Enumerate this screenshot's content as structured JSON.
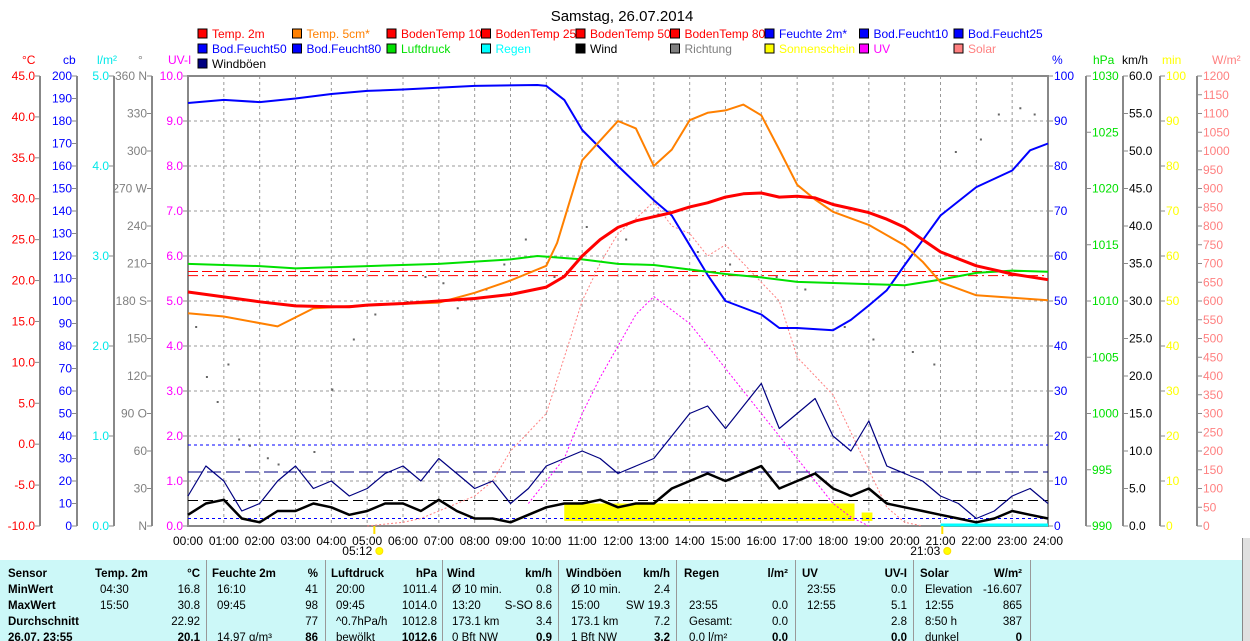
{
  "chart_data": {
    "type": "line",
    "title": "Samstag, 26.07.2014",
    "x_ticks": [
      "00:00",
      "01:00",
      "02:00",
      "03:00",
      "04:00",
      "05:00",
      "06:00",
      "07:00",
      "08:00",
      "09:00",
      "10:00",
      "11:00",
      "12:00",
      "13:00",
      "14:00",
      "15:00",
      "16:00",
      "17:00",
      "18:00",
      "19:00",
      "20:00",
      "21:00",
      "22:00",
      "23:00",
      "24:00"
    ],
    "sunrise": {
      "label": "05:12",
      "hour": 5.2
    },
    "sunset": {
      "label": "21:03",
      "hour": 21.05
    },
    "legend": [
      {
        "label": "Temp. 2m",
        "color": "#ff0000"
      },
      {
        "label": "Temp. 5cm*",
        "color": "#ff8000"
      },
      {
        "label": "BodenTemp 10",
        "color": "#ff0000"
      },
      {
        "label": "BodenTemp 25",
        "color": "#ff0000"
      },
      {
        "label": "BodenTemp 50",
        "color": "#ff0000"
      },
      {
        "label": "BodenTemp 80",
        "color": "#ff0000"
      },
      {
        "label": "Feuchte 2m*",
        "color": "#0000ff"
      },
      {
        "label": "Bod.Feucht10",
        "color": "#0000ff"
      },
      {
        "label": "Bod.Feucht25",
        "color": "#0000ff"
      },
      {
        "label": "Bod.Feucht50",
        "color": "#0000ff"
      },
      {
        "label": "Bod.Feucht80",
        "color": "#0000ff"
      },
      {
        "label": "Luftdruck",
        "color": "#00e000"
      },
      {
        "label": "Regen",
        "color": "#00ffff"
      },
      {
        "label": "Wind",
        "color": "#000000"
      },
      {
        "label": "Richtung",
        "color": "#808080"
      },
      {
        "label": "Sonnenschein",
        "color": "#ffff00"
      },
      {
        "label": "UV",
        "color": "#ff00ff"
      },
      {
        "label": "Solar",
        "color": "#ff8080"
      },
      {
        "label": "Windböen",
        "color": "#000080"
      }
    ],
    "axes": {
      "temp": {
        "title": "°C",
        "color": "#ff0000",
        "range": [
          -10,
          45
        ],
        "ticks": [
          "45.0",
          "40.0",
          "35.0",
          "30.0",
          "25.0",
          "20.0",
          "15.0",
          "10.0",
          "5.0",
          "0.0",
          "-5.0",
          "-10.0"
        ]
      },
      "cb": {
        "title": "cb",
        "color": "#0000ff",
        "range": [
          0,
          200
        ],
        "ticks": [
          "200",
          "190",
          "180",
          "170",
          "160",
          "150",
          "140",
          "130",
          "120",
          "110",
          "100",
          "90",
          "80",
          "70",
          "60",
          "50",
          "40",
          "30",
          "20",
          "10",
          "0"
        ]
      },
      "rain": {
        "title": "l/m²",
        "color": "#00e8e8",
        "range": [
          0,
          5
        ],
        "ticks": [
          "5.0",
          "4.0",
          "3.0",
          "2.0",
          "1.0",
          "0.0"
        ]
      },
      "dir": {
        "title": "°",
        "color": "#808080",
        "range": [
          0,
          360
        ],
        "ticks": [
          "360 N",
          "330",
          "300",
          "270 W",
          "240",
          "210",
          "180 S",
          "150",
          "120",
          "90  O",
          "60",
          "30",
          "N"
        ]
      },
      "uv": {
        "title": "UV-I",
        "color": "#ff00ff",
        "range": [
          0,
          10
        ],
        "ticks": [
          "10.0",
          "9.0",
          "8.0",
          "7.0",
          "6.0",
          "5.0",
          "4.0",
          "3.0",
          "2.0",
          "1.0",
          "0.0"
        ]
      },
      "hum": {
        "title": "%",
        "color": "#0000ff",
        "range": [
          0,
          100
        ],
        "ticks": [
          "100",
          "90",
          "80",
          "70",
          "60",
          "50",
          "40",
          "30",
          "20",
          "10",
          "0"
        ]
      },
      "press": {
        "title": "hPa",
        "color": "#00e000",
        "range": [
          990,
          1030
        ],
        "ticks": [
          "1030",
          "1025",
          "1020",
          "1015",
          "1010",
          "1005",
          "1000",
          "995",
          "990"
        ]
      },
      "wind": {
        "title": "km/h",
        "color": "#000000",
        "range": [
          0,
          60
        ],
        "ticks": [
          "60.0",
          "55.0",
          "50.0",
          "45.0",
          "40.0",
          "35.0",
          "30.0",
          "25.0",
          "20.0",
          "15.0",
          "10.0",
          "5.0",
          "0.0"
        ]
      },
      "sun": {
        "title": "min",
        "color": "#ffff00",
        "range": [
          0,
          100
        ],
        "ticks": [
          "100",
          "90",
          "80",
          "70",
          "60",
          "50",
          "40",
          "30",
          "20",
          "10",
          "0"
        ]
      },
      "solar": {
        "title": "W/m²",
        "color": "#ff8080",
        "range": [
          0,
          1200
        ],
        "ticks": [
          "1200",
          "1150",
          "1100",
          "1050",
          "1000",
          "950",
          "900",
          "850",
          "800",
          "750",
          "700",
          "650",
          "600",
          "550",
          "500",
          "450",
          "400",
          "350",
          "300",
          "250",
          "200",
          "150",
          "100",
          "50",
          "0"
        ]
      }
    },
    "series": [
      {
        "name": "Temp. 2m",
        "axis": "temp",
        "color": "#ff0000",
        "width": 3,
        "x": [
          0,
          1,
          2,
          3,
          4,
          4.5,
          5,
          6,
          7,
          8,
          9,
          10,
          10.5,
          11,
          11.5,
          12,
          12.5,
          13,
          13.5,
          14,
          14.5,
          15,
          15.5,
          16,
          16.5,
          17,
          17.5,
          18,
          18.5,
          19,
          19.5,
          20,
          20.5,
          21,
          22,
          23,
          24
        ],
        "y": [
          18.6,
          18.0,
          17.4,
          16.9,
          16.8,
          16.8,
          17.0,
          17.2,
          17.5,
          17.8,
          18.3,
          19.2,
          20.5,
          23,
          25,
          26.5,
          27.3,
          27.8,
          28.3,
          29,
          29.5,
          30.2,
          30.6,
          30.7,
          30.2,
          30.3,
          30.1,
          29.3,
          28.8,
          28.3,
          27.5,
          26.5,
          25,
          23.5,
          21.8,
          20.8,
          20.1
        ]
      },
      {
        "name": "Temp. 5cm*",
        "axis": "temp",
        "color": "#ff8000",
        "width": 2,
        "x": [
          0,
          1,
          2.5,
          3.5,
          5,
          7,
          8,
          9,
          10,
          10.3,
          11,
          12,
          12.5,
          13,
          13.5,
          14,
          14.5,
          15,
          15.5,
          16,
          16.5,
          17,
          17.5,
          18,
          19,
          20,
          20.5,
          21,
          22,
          23,
          24
        ],
        "y": [
          16.0,
          15.6,
          14.4,
          16.6,
          17.0,
          17.3,
          18.5,
          20,
          21.8,
          24.6,
          34.7,
          39.5,
          38.6,
          34,
          36,
          39.6,
          40.5,
          40.8,
          41.5,
          40.2,
          36,
          31.7,
          29.9,
          28.4,
          26.8,
          24.3,
          22.3,
          19.8,
          18.2,
          17.9,
          17.6
        ]
      },
      {
        "name": "Feuchte 2m*",
        "axis": "hum",
        "color": "#0000ff",
        "width": 2,
        "x": [
          0,
          1,
          2,
          3,
          4,
          5,
          6,
          8,
          9.75,
          10,
          10.5,
          11,
          12,
          13,
          13.5,
          14,
          14.5,
          15,
          16,
          16.5,
          17,
          18,
          18.5,
          19,
          19.5,
          20,
          20.5,
          21,
          22,
          23,
          23.5,
          24
        ],
        "y": [
          94,
          94.7,
          94.2,
          95,
          96,
          96.7,
          97,
          97.8,
          98,
          97.8,
          94.7,
          88,
          80,
          72.4,
          69,
          62.4,
          55.8,
          50,
          47,
          44,
          44,
          43.5,
          45.8,
          49,
          52.4,
          58,
          63.5,
          69,
          75.3,
          79,
          83.5,
          85
        ]
      },
      {
        "name": "Luftdruck",
        "axis": "press",
        "color": "#00e000",
        "width": 2,
        "x": [
          0,
          2,
          3,
          5,
          7,
          9,
          9.75,
          11,
          12,
          13,
          14,
          15,
          16,
          17,
          18,
          19,
          20,
          21,
          22,
          23,
          24
        ],
        "y": [
          1013.3,
          1013.1,
          1012.9,
          1013.1,
          1013.3,
          1013.7,
          1014.0,
          1013.7,
          1013.3,
          1013.2,
          1012.8,
          1012.4,
          1012.1,
          1011.7,
          1011.6,
          1011.5,
          1011.4,
          1011.9,
          1012.5,
          1012.7,
          1012.6
        ]
      },
      {
        "name": "Wind",
        "axis": "wind",
        "color": "#000000",
        "width": 2.5,
        "x_step_hours": 0.5,
        "y": [
          1.5,
          3,
          3.5,
          1,
          0.5,
          2,
          2,
          3,
          2.5,
          1.5,
          2,
          3,
          3,
          2,
          3.5,
          2,
          1,
          1,
          0.5,
          1.5,
          2.5,
          3,
          3,
          3.5,
          2.5,
          3,
          3,
          5,
          6,
          7,
          6,
          7,
          8,
          5,
          6,
          7,
          5,
          4,
          5,
          3,
          2.5,
          2,
          1.5,
          1,
          0.5,
          1,
          2,
          1.5,
          1
        ]
      },
      {
        "name": "Windböen",
        "axis": "wind",
        "color": "#000080",
        "width": 1.2,
        "x_step_hours": 0.5,
        "y": [
          4,
          8,
          6,
          2,
          3,
          6,
          8,
          5,
          6,
          4,
          5,
          7,
          8,
          6,
          9,
          7,
          5,
          6,
          3,
          5,
          8,
          9,
          10,
          9,
          7,
          8,
          9,
          12,
          15,
          16,
          13,
          16,
          19,
          13,
          15,
          17,
          12,
          10,
          14,
          8,
          7,
          6,
          4,
          3,
          1,
          2,
          4,
          5,
          3
        ]
      },
      {
        "name": "Solar",
        "axis": "solar",
        "color": "#ff8080",
        "width": 1,
        "dash": "2,2",
        "x": [
          5,
          5.5,
          6,
          6.5,
          7,
          7.5,
          8,
          8.5,
          9,
          9.5,
          10,
          10.5,
          11,
          11.5,
          12,
          12.5,
          13,
          13.5,
          14,
          14.5,
          15,
          15.5,
          16,
          16.5,
          17,
          17.5,
          18,
          18.5,
          19,
          19.5,
          20,
          20.5
        ],
        "y": [
          0,
          5,
          10,
          20,
          40,
          60,
          80,
          120,
          200,
          250,
          300,
          450,
          600,
          700,
          780,
          820,
          865,
          800,
          780,
          720,
          750,
          700,
          650,
          600,
          450,
          400,
          350,
          250,
          150,
          50,
          10,
          0
        ]
      },
      {
        "name": "UV",
        "axis": "uv",
        "color": "#ff00ff",
        "width": 1,
        "dash": "2,2",
        "x": [
          9.5,
          10,
          10.5,
          11,
          11.5,
          12,
          12.5,
          13,
          13.5,
          14,
          14.5,
          15,
          15.5,
          16,
          16.5,
          17,
          17.5,
          18,
          18.5,
          19
        ],
        "y": [
          0.5,
          1,
          1.5,
          2.5,
          3.3,
          4,
          4.7,
          5.1,
          4.8,
          4.5,
          4,
          3.5,
          3,
          2.5,
          2,
          1.5,
          1,
          0.5,
          0.2,
          0
        ]
      }
    ],
    "reference_lines": [
      {
        "axis": "temp",
        "value": 20.6,
        "color": "#ff0000",
        "dash": "10,4,2,4"
      },
      {
        "axis": "temp",
        "value": 21.1,
        "color": "#ff0000",
        "dash": "10,4"
      },
      {
        "axis": "hum",
        "value": 18,
        "color": "#0000ff",
        "dash": "3,3"
      },
      {
        "axis": "wind",
        "value": 3.4,
        "color": "#000000",
        "dash": "10,5"
      },
      {
        "axis": "wind",
        "value": 7.2,
        "color": "#000080",
        "dash": "14,5"
      },
      {
        "axis": "wind",
        "value": 1.0,
        "color": "#0000ff",
        "dash": "3,3"
      }
    ],
    "direction_points": {
      "axis": "dir",
      "x": [
        0.2,
        0.5,
        0.8,
        1.1,
        1.4,
        1.7,
        2.2,
        2.5,
        3.1,
        3.5,
        4,
        4.6,
        5.2,
        6.1,
        6.6,
        7.1,
        7.5,
        8.3,
        8.8,
        9.4,
        10.2,
        11.1,
        12.2,
        13.1,
        14.2,
        15.1,
        16.4,
        17.2,
        18.3,
        19.1,
        20.2,
        20.8,
        21.4,
        22.1,
        22.6,
        23.2,
        23.6
      ],
      "y": [
        160,
        120,
        100,
        130,
        70,
        65,
        55,
        50,
        45,
        60,
        110,
        150,
        170,
        180,
        200,
        195,
        175,
        190,
        210,
        230,
        200,
        240,
        230,
        250,
        220,
        210,
        200,
        190,
        160,
        150,
        140,
        130,
        300,
        310,
        330,
        335,
        330
      ]
    },
    "sunshine": [
      {
        "from": 10.5,
        "to": 18.6,
        "value": 5
      },
      {
        "from": 18.8,
        "to": 19.1,
        "value": 3
      }
    ]
  },
  "table": {
    "headers": [
      {
        "name": "Sensor",
        "unit": ""
      },
      {
        "name": "Temp. 2m",
        "unit": "°C"
      },
      {
        "name": "Feuchte 2m",
        "unit": "%"
      },
      {
        "name": "Luftdruck",
        "unit": "hPa"
      },
      {
        "name": "Wind",
        "unit": "km/h"
      },
      {
        "name": "Windböen",
        "unit": "km/h"
      },
      {
        "name": "Regen",
        "unit": "l/m²"
      },
      {
        "name": "UV",
        "unit": "UV-I"
      },
      {
        "name": "Solar",
        "unit": "W/m²"
      }
    ],
    "rows": [
      {
        "label": "MinWert",
        "cells": [
          [
            "04:30",
            "16.8"
          ],
          [
            "16:10",
            "41"
          ],
          [
            "20:00",
            "1011.4"
          ],
          [
            "Ø 10 min.",
            "0.8"
          ],
          [
            "Ø 10 min.",
            "2.4"
          ],
          [
            "",
            ""
          ],
          [
            "23:55",
            "0.0"
          ],
          [
            "Elevation",
            "-16.607"
          ]
        ]
      },
      {
        "label": "MaxWert",
        "cells": [
          [
            "15:50",
            "30.8"
          ],
          [
            "09:45",
            "98"
          ],
          [
            "09:45",
            "1014.0"
          ],
          [
            "13:20",
            "S-SO 8.6"
          ],
          [
            "15:00",
            "SW 19.3"
          ],
          [
            "23:55",
            "0.0"
          ],
          [
            "12:55",
            "5.1"
          ],
          [
            "12:55",
            "865"
          ]
        ]
      },
      {
        "label": "Durchschnitt",
        "cells": [
          [
            "",
            "22.92"
          ],
          [
            "",
            "77"
          ],
          [
            "^0.7hPa/h",
            "1012.8"
          ],
          [
            "173.1 km",
            "3.4"
          ],
          [
            "173.1 km",
            "7.2"
          ],
          [
            "Gesamt:",
            "0.0"
          ],
          [
            "",
            "2.8"
          ],
          [
            "8:50 h",
            "387"
          ]
        ]
      },
      {
        "label": "26.07. 23:55",
        "cells": [
          [
            "",
            "20.1"
          ],
          [
            "14.97 g/m³",
            "86"
          ],
          [
            "bewölkt",
            "1012.6"
          ],
          [
            "0 Bft NW",
            "0.9"
          ],
          [
            "1 Bft NW",
            "3.2"
          ],
          [
            "0.0 l/m²",
            "0.0"
          ],
          [
            "",
            "0.0"
          ],
          [
            "dunkel",
            "0"
          ]
        ]
      }
    ]
  }
}
